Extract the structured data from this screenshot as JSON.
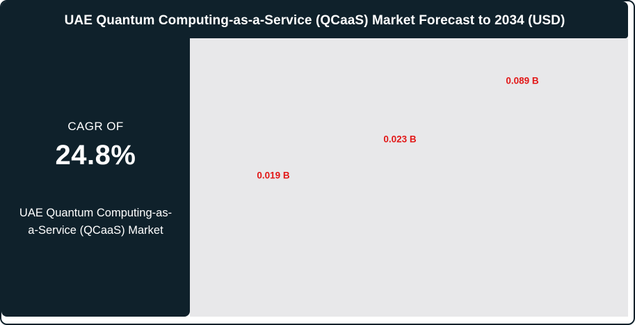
{
  "header": {
    "title": "UAE Quantum Computing-as-a-Service (QCaaS) Market Forecast to 2034 (USD)"
  },
  "sidebar": {
    "cagr_label": "CAGR OF",
    "cagr_value": "24.8%",
    "market_name": "UAE Quantum Computing-as-a-Service (QCaaS) Market"
  },
  "colors": {
    "dark_panel": "#0f212b",
    "plot_background": "#e8e8ea",
    "data_label_red": "#e21717",
    "text_white": "#ffffff",
    "card_background": "#ffffff"
  },
  "chart_data": {
    "type": "scatter",
    "title": "UAE Quantum Computing-as-a-Service (QCaaS) Market Forecast to 2034 (USD)",
    "unit": "USD billions",
    "cagr": "24.8%",
    "points": [
      {
        "label": "0.019 B",
        "value": 0.019
      },
      {
        "label": "0.023 B",
        "value": 0.023
      },
      {
        "label": "0.089 B",
        "value": 0.089
      }
    ],
    "categories_visible": false,
    "axes_visible": false,
    "gridlines": false,
    "legend_position": "none",
    "notes": "Only red data labels are rendered on a plain light-gray plot area; values ascend left-to-right"
  }
}
